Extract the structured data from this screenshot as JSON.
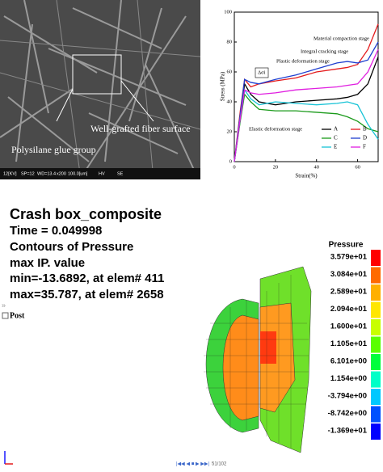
{
  "sem": {
    "annotation_fiber": "Well-grafted fiber surface",
    "annotation_glue": "Polysilane glue group",
    "info_bar": [
      "12[KV]",
      "SP=12",
      "WD=13.4",
      "x200",
      "100.0[um]",
      "HV",
      "SE"
    ]
  },
  "chart_data": {
    "type": "line",
    "x_label": "Strain(%)",
    "y_label": "Stress (MPa)",
    "x": [
      0,
      3,
      5,
      8,
      12,
      20,
      30,
      40,
      50,
      55,
      60,
      65,
      70
    ],
    "series": [
      {
        "name": "A",
        "color": "#000000",
        "values": [
          0,
          30,
          52,
          45,
          40,
          38,
          40,
          41,
          42,
          43,
          45,
          52,
          70
        ]
      },
      {
        "name": "B",
        "color": "#e41a1c",
        "values": [
          0,
          35,
          55,
          50,
          52,
          54,
          56,
          60,
          62,
          63,
          65,
          75,
          92
        ]
      },
      {
        "name": "C",
        "color": "#1a9a1a",
        "values": [
          0,
          28,
          45,
          40,
          35,
          34,
          34,
          33,
          32,
          30,
          27,
          22,
          20
        ]
      },
      {
        "name": "D",
        "color": "#1f3fd0",
        "values": [
          0,
          33,
          55,
          53,
          52,
          55,
          58,
          62,
          66,
          67,
          66,
          68,
          80
        ]
      },
      {
        "name": "E",
        "color": "#17c3d6",
        "values": [
          0,
          30,
          48,
          42,
          38,
          40,
          39,
          38,
          39,
          40,
          38,
          25,
          15
        ]
      },
      {
        "name": "F",
        "color": "#e01ee0",
        "values": [
          0,
          30,
          48,
          46,
          45,
          46,
          48,
          49,
          50,
          51,
          52,
          60,
          75
        ]
      }
    ],
    "xlim": [
      0,
      70
    ],
    "xticks": [
      0,
      20,
      40,
      60
    ],
    "ylim": [
      0,
      100
    ],
    "yticks": [
      0,
      20,
      40,
      60,
      80,
      100
    ],
    "annotations": [
      "Material compaction stage",
      "Integral cracking stage",
      "Plastic deformation stage",
      "Elastic deformation stage",
      "Δσi"
    ]
  },
  "fea": {
    "title": "Crash box_composite",
    "lines": [
      "Time =    0.049998",
      "Contours of Pressure",
      "max IP. value",
      " min=-13.6892, at elem# 411",
      " max=35.787, at elem# 2658"
    ],
    "post": "Post",
    "legend": {
      "title": "Pressure",
      "labels": [
        "3.579e+01",
        "3.084e+01",
        "2.589e+01",
        "2.094e+01",
        "1.600e+01",
        "1.105e+01",
        "6.101e+00",
        "1.154e+00",
        "-3.794e+00",
        "-8.742e+00",
        "-1.369e+01"
      ],
      "colors": [
        "#ff0000",
        "#ff6a00",
        "#ffb000",
        "#ffe600",
        "#c8ff00",
        "#5aff00",
        "#00ff3c",
        "#00ffc8",
        "#00c8ff",
        "#0050ff",
        "#0000ff"
      ]
    },
    "frame": "51/102"
  }
}
